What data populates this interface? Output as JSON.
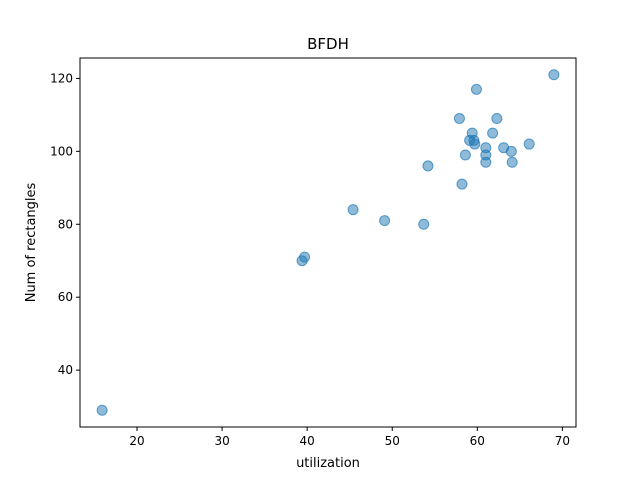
{
  "chart_data": {
    "type": "scatter",
    "title": "BFDH",
    "xlabel": "utilization",
    "ylabel": "Num of rectangles",
    "xlim": [
      13.3,
      71.6
    ],
    "ylim": [
      24.4,
      125.6
    ],
    "x_ticks": [
      20,
      30,
      40,
      50,
      60,
      70
    ],
    "y_ticks": [
      40,
      60,
      80,
      100,
      120
    ],
    "grid": false,
    "marker_color": "#1f77b4",
    "marker_alpha": 0.5,
    "points": [
      {
        "x": 15.9,
        "y": 29
      },
      {
        "x": 39.4,
        "y": 70
      },
      {
        "x": 39.7,
        "y": 71
      },
      {
        "x": 45.4,
        "y": 84
      },
      {
        "x": 49.1,
        "y": 81
      },
      {
        "x": 53.7,
        "y": 80
      },
      {
        "x": 54.2,
        "y": 96
      },
      {
        "x": 57.9,
        "y": 109
      },
      {
        "x": 58.2,
        "y": 91
      },
      {
        "x": 58.6,
        "y": 99
      },
      {
        "x": 59.1,
        "y": 103
      },
      {
        "x": 59.4,
        "y": 105
      },
      {
        "x": 59.6,
        "y": 103
      },
      {
        "x": 59.7,
        "y": 102
      },
      {
        "x": 59.9,
        "y": 117
      },
      {
        "x": 61.0,
        "y": 101
      },
      {
        "x": 61.0,
        "y": 99
      },
      {
        "x": 61.0,
        "y": 97
      },
      {
        "x": 61.8,
        "y": 105
      },
      {
        "x": 62.3,
        "y": 109
      },
      {
        "x": 63.1,
        "y": 101
      },
      {
        "x": 64.0,
        "y": 100
      },
      {
        "x": 64.1,
        "y": 97
      },
      {
        "x": 66.1,
        "y": 102
      },
      {
        "x": 69.0,
        "y": 121
      }
    ]
  }
}
